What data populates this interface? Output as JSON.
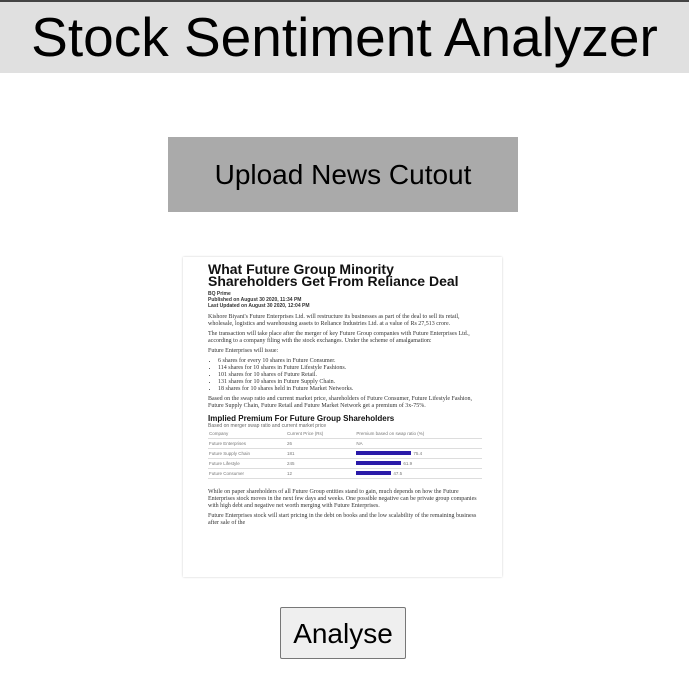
{
  "header": {
    "title": "Stock Sentiment Analyzer"
  },
  "upload_button": {
    "label": "Upload News Cutout"
  },
  "news_cutout": {
    "headline": "What Future Group Minority Shareholders Get From Reliance Deal",
    "byline": "BQ Prime",
    "published": "Published on August 30 2020, 11:34 PM",
    "updated": "Last Updated on August 30 2020, 12:04 PM",
    "paragraphs": [
      "Kishore Biyani's Future Enterprises Ltd. will restructure its businesses as part of the deal to sell its retail, wholesale, logistics and warehousing assets to Reliance Industries Ltd. at a value of Rs 27,513 crore.",
      "The transaction will take place after the merger of key Future Group companies with Future Enterprises Ltd., according to a company filing with the stock exchanges. Under the scheme of amalgamation:",
      "Future Enterprises will issue:"
    ],
    "bullets": [
      "6 shares for every 10 shares in Future Consumer.",
      "114 shares for 10 shares in Future Lifestyle Fashions.",
      "101 shares for 10 shares of Future Retail.",
      "131 shares for 10 shares in Future Supply Chain.",
      "18 shares for 10 shares held in Future Market Networks."
    ],
    "note": "Based on the swap ratio and current market price, shareholders of Future Consumer, Future Lifestyle Fashion, Future Supply Chain, Future Retail and Future Market Network get a premium of 3x-75%.",
    "table": {
      "title": "Implied Premium For Future Group Shareholders",
      "subtitle": "Based on merger swap ratio and current market price",
      "columns": [
        "Company",
        "Current Price (Rs)",
        "Premium based on swap ratio (%)"
      ],
      "rows": [
        [
          "Future Enterprises",
          "26",
          "NA"
        ],
        [
          "Future Supply Chain",
          "181",
          "75.4"
        ],
        [
          "Future Lifestyle",
          "245",
          "61.9"
        ],
        [
          "Future Consumer",
          "12",
          "47.5"
        ]
      ]
    },
    "closing": [
      "While on paper shareholders of all Future Group entities stand to gain, much depends on how the Future Enterprises stock moves in the next few days and weeks. One possible negative can be private group companies with high debt and negative net worth merging with Future Enterprises.",
      "Future Enterprises stock will start pricing in the debt on books and the low scalability of the remaining business after sale of the"
    ]
  },
  "analyse_button": {
    "label": "Analyse"
  }
}
